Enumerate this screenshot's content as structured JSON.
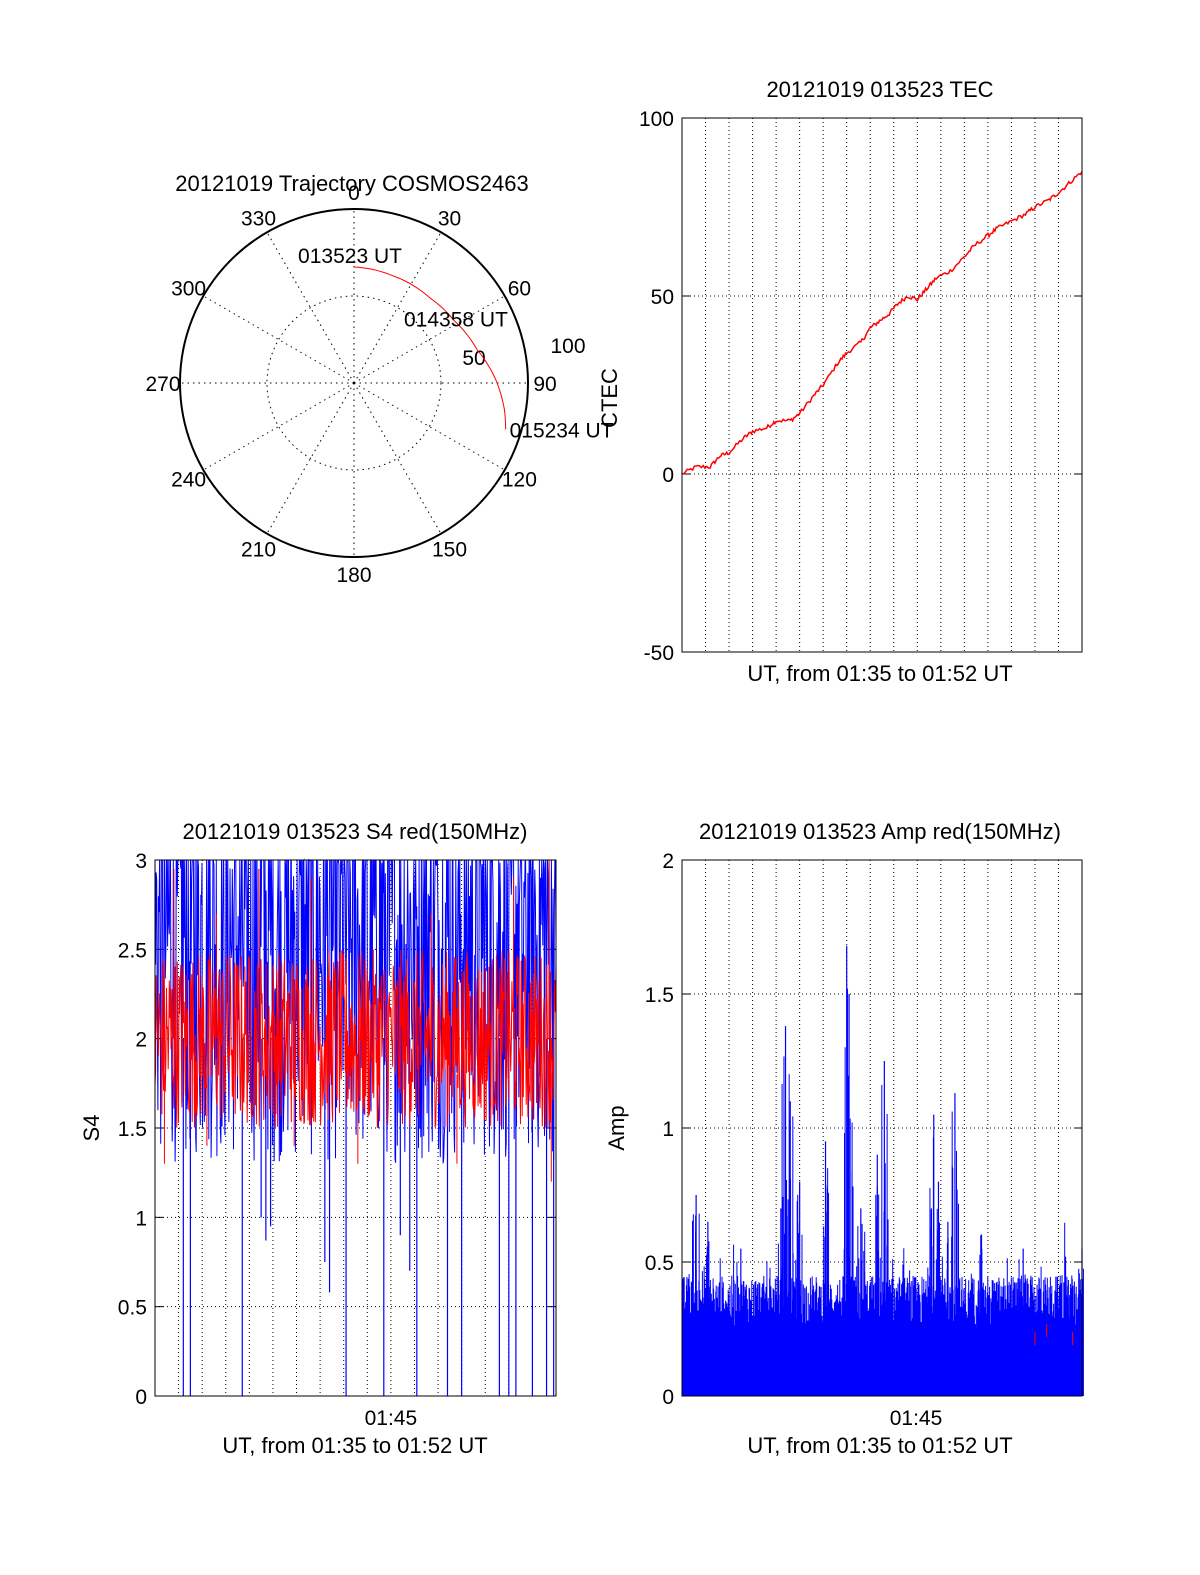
{
  "colors": {
    "red": "#ff0000",
    "blue": "#0000ff",
    "axis": "#000000",
    "grid": "#000000",
    "background": "#ffffff"
  },
  "chart_data": [
    {
      "type": "polar",
      "title": "20121019 Trajectory COSMOS2463",
      "azimuth_labels": [
        "0",
        "30",
        "60",
        "90",
        "120",
        "150",
        "180",
        "210",
        "240",
        "270",
        "300",
        "330"
      ],
      "radial_labels": [
        "50",
        "100"
      ],
      "grid": true,
      "series": [
        {
          "color": "#ff0000",
          "points": [
            {
              "azimuth": 0,
              "elevation": 30
            },
            {
              "azimuth": 20,
              "elevation": 31
            },
            {
              "azimuth": 42,
              "elevation": 31
            },
            {
              "azimuth": 58,
              "elevation": 29
            },
            {
              "azimuth": 75,
              "elevation": 24
            },
            {
              "azimuth": 88,
              "elevation": 17
            },
            {
              "azimuth": 100,
              "elevation": 11
            },
            {
              "azimuth": 107,
              "elevation": 8
            }
          ]
        }
      ],
      "annotations": [
        {
          "text": "013523 UT",
          "azimuth": 0,
          "elevation": 30
        },
        {
          "text": "014358 UT",
          "azimuth": 58,
          "elevation": 29
        },
        {
          "text": "015234 UT",
          "azimuth": 107,
          "elevation": 8
        }
      ]
    },
    {
      "type": "line",
      "title": "20121019 013523 TEC",
      "xlabel": "UT, from 01:35 to 01:52 UT",
      "ylabel": "CTEC",
      "xlim": [
        0,
        17
      ],
      "ylim": [
        -50,
        100
      ],
      "yticks": [
        "-50",
        "0",
        "50",
        "100"
      ],
      "grid": true,
      "series": [
        {
          "color": "#ff0000",
          "x": [
            0,
            0.6,
            1.2,
            1.6,
            2,
            2.6,
            3,
            3.6,
            4,
            4.6,
            5,
            5.6,
            6,
            6.6,
            7,
            7.6,
            8,
            8.4,
            8.8,
            9.2,
            9.6,
            10,
            10.4,
            10.8,
            11.4,
            12,
            12.4,
            13,
            13.4,
            14,
            14.6,
            15,
            15.6,
            16,
            16.5,
            17
          ],
          "y": [
            0,
            2,
            2,
            5,
            6,
            10,
            12,
            13,
            15,
            15,
            17,
            22,
            25,
            31,
            34,
            37,
            41,
            43,
            45,
            48,
            50,
            49,
            52,
            55,
            57,
            61,
            64,
            67,
            69,
            71,
            73,
            75,
            77,
            79,
            82,
            85
          ]
        }
      ]
    },
    {
      "type": "line",
      "title": "20121019 013523 S4 red(150MHz)",
      "xlabel": "UT, from 01:35 to 01:52 UT",
      "ylabel": "S4",
      "xlim": [
        0,
        17
      ],
      "ylim": [
        0,
        3
      ],
      "xtick_labels": [
        {
          "x": 10,
          "label": "01:45"
        }
      ],
      "yticks": [
        "0",
        "0.5",
        "1",
        "1.5",
        "2",
        "2.5",
        "3"
      ],
      "grid": true,
      "series": [
        {
          "color": "#0000ff",
          "dips": [
            [
              1.2,
              0
            ],
            [
              1.5,
              0
            ],
            [
              3.7,
              0
            ],
            [
              4.5,
              1.0
            ],
            [
              4.7,
              0.87
            ],
            [
              4.9,
              0.95
            ],
            [
              7.2,
              0.75
            ],
            [
              7.4,
              0.58
            ],
            [
              8.1,
              0
            ],
            [
              9.7,
              0
            ],
            [
              10.4,
              0.9
            ],
            [
              10.8,
              0.7
            ],
            [
              11.1,
              0
            ],
            [
              12.4,
              0
            ],
            [
              13,
              0
            ],
            [
              14.6,
              0
            ],
            [
              15,
              0
            ],
            [
              15.3,
              0
            ],
            [
              16,
              0
            ],
            [
              16.6,
              0
            ],
            [
              16.9,
              0
            ]
          ],
          "band": [
            1.3,
            3.0
          ]
        },
        {
          "color": "#ff0000",
          "band": [
            1.5,
            2.5
          ],
          "peaks": [
            [
              0.8,
              2.95
            ],
            [
              2.6,
              2.7
            ],
            [
              4.4,
              2.95
            ],
            [
              6.6,
              2.9
            ],
            [
              11.7,
              2.7
            ],
            [
              15.2,
              2.9
            ],
            [
              16.7,
              3.0
            ]
          ],
          "lows": [
            [
              0.4,
              1.3
            ],
            [
              2.2,
              1.4
            ],
            [
              5.9,
              1.4
            ],
            [
              8.6,
              1.3
            ],
            [
              12.8,
              1.3
            ],
            [
              16.8,
              1.2
            ]
          ]
        }
      ]
    },
    {
      "type": "bar",
      "title": "20121019 013523 Amp red(150MHz)",
      "xlabel": "UT, from 01:35 to 01:52 UT",
      "ylabel": "Amp",
      "xlim": [
        0,
        17
      ],
      "ylim": [
        0,
        2
      ],
      "xtick_labels": [
        {
          "x": 10,
          "label": "01:45"
        }
      ],
      "yticks": [
        "0",
        "0.5",
        "1",
        "1.5",
        "2"
      ],
      "grid": true,
      "series": [
        {
          "color": "#0000ff",
          "base_level": [
            0.25,
            0.45
          ],
          "peaks": [
            [
              0.6,
              0.75
            ],
            [
              1.1,
              0.65
            ],
            [
              2.5,
              0.55
            ],
            [
              4.2,
              0.7
            ],
            [
              4.4,
              1.38
            ],
            [
              4.6,
              1.1
            ],
            [
              5.0,
              0.8
            ],
            [
              6.1,
              0.95
            ],
            [
              7.0,
              1.68
            ],
            [
              7.1,
              1.5
            ],
            [
              7.6,
              0.7
            ],
            [
              8.3,
              0.9
            ],
            [
              8.6,
              1.25
            ],
            [
              10.6,
              0.7
            ],
            [
              10.7,
              1.05
            ],
            [
              10.9,
              0.8
            ],
            [
              11.3,
              0.65
            ],
            [
              11.6,
              1.13
            ],
            [
              12.7,
              0.6
            ],
            [
              14.5,
              0.55
            ],
            [
              16.3,
              0.52
            ],
            [
              17.0,
              0.55
            ]
          ]
        },
        {
          "color": "#ff0000",
          "base_level": [
            0.2,
            0.32
          ]
        }
      ]
    }
  ]
}
